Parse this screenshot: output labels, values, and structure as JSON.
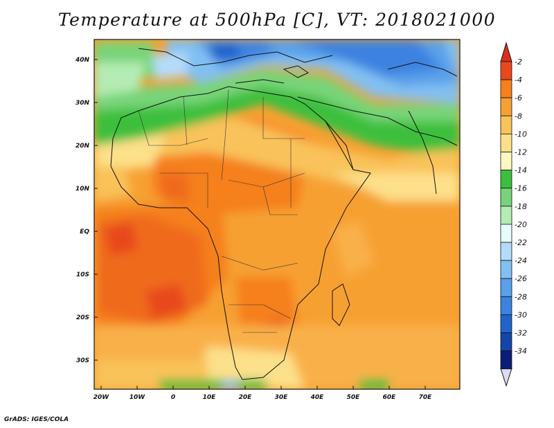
{
  "title": "Temperature at 500hPa [C], VT: 2018021000",
  "footer": "GrADS: IGES/COLA",
  "map": {
    "variable": "Temperature",
    "level": "500hPa",
    "units": "C",
    "valid_time": "2018021000",
    "lat_labels": [
      "40N",
      "30N",
      "20N",
      "10N",
      "EQ",
      "10S",
      "20S",
      "30S"
    ],
    "lon_labels": [
      "20W",
      "10W",
      "0",
      "10E",
      "20E",
      "30E",
      "40E",
      "50E",
      "60E",
      "70E"
    ]
  },
  "colorbar": {
    "labels": [
      "-2",
      "-4",
      "-6",
      "-8",
      "-10",
      "-12",
      "-14",
      "-16",
      "-18",
      "-20",
      "-22",
      "-24",
      "-26",
      "-28",
      "-30",
      "-32",
      "-34"
    ],
    "colors": [
      "#e8481c",
      "#f5801c",
      "#f7a032",
      "#f9c25a",
      "#fde08a",
      "#fff8c0",
      "#3cbf3c",
      "#78d478",
      "#b4ecb4",
      "#e8fcfc",
      "#b4dcfa",
      "#82c0f2",
      "#5aa0ea",
      "#3c82e0",
      "#2064cc",
      "#1446aa",
      "#0a1e78"
    ],
    "top_color": "#d8301a",
    "bottom_color": "#dcdcf0"
  }
}
